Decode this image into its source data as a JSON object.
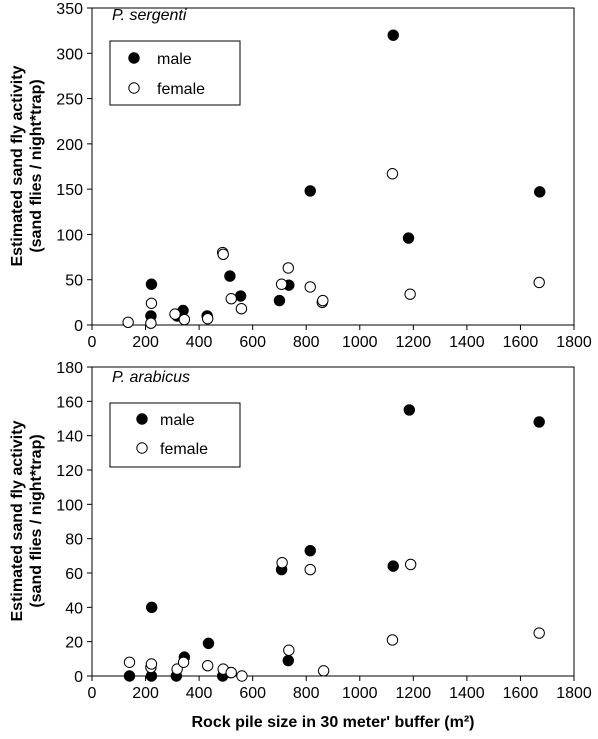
{
  "chart_data": [
    {
      "type": "scatter",
      "panel_label": "P. sergenti",
      "ylabel_line1": "Estimated sand fly activity",
      "ylabel_line2": "(sand flies / night*trap)",
      "xlim": [
        0,
        1800
      ],
      "ylim": [
        0,
        350
      ],
      "xticks": [
        "0",
        "200",
        "400",
        "600",
        "800",
        "1000",
        "1200",
        "1400",
        "1600",
        "1800"
      ],
      "yticks": [
        "0",
        "50",
        "100",
        "150",
        "200",
        "250",
        "300",
        "350"
      ],
      "legend_position": "top-left",
      "series": [
        {
          "name": "male",
          "marker": "filled-circle",
          "color": "#000000",
          "points": [
            [
              220,
              10
            ],
            [
              222,
              45
            ],
            [
              318,
              10
            ],
            [
              340,
              16
            ],
            [
              430,
              10
            ],
            [
              515,
              54
            ],
            [
              555,
              32
            ],
            [
              700,
              27
            ],
            [
              735,
              44
            ],
            [
              815,
              148
            ],
            [
              1125,
              320
            ],
            [
              1182,
              96
            ],
            [
              1672,
              147
            ]
          ]
        },
        {
          "name": "female",
          "marker": "open-circle",
          "color": "#000000",
          "points": [
            [
              135,
              3
            ],
            [
              220,
              2
            ],
            [
              222,
              24
            ],
            [
              310,
              12
            ],
            [
              345,
              6
            ],
            [
              432,
              7
            ],
            [
              488,
              80
            ],
            [
              490,
              78
            ],
            [
              520,
              29
            ],
            [
              558,
              18
            ],
            [
              708,
              45
            ],
            [
              733,
              63
            ],
            [
              815,
              42
            ],
            [
              860,
              25
            ],
            [
              862,
              27
            ],
            [
              1122,
              167
            ],
            [
              1188,
              34
            ],
            [
              1670,
              47
            ]
          ]
        }
      ]
    },
    {
      "type": "scatter",
      "panel_label": "P. arabicus",
      "ylabel_line1": "Estimated sand fly activity",
      "ylabel_line2": "(sand flies / night*trap)",
      "xlabel": "Rock pile size in 30 meter' buffer (m²)",
      "xlim": [
        0,
        1800
      ],
      "ylim": [
        0,
        180
      ],
      "xticks": [
        "0",
        "200",
        "400",
        "600",
        "800",
        "1000",
        "1200",
        "1400",
        "1600",
        "1800"
      ],
      "yticks": [
        "0",
        "20",
        "40",
        "60",
        "80",
        "100",
        "120",
        "140",
        "160",
        "180"
      ],
      "legend_position": "top-left",
      "series": [
        {
          "name": "male",
          "marker": "filled-circle",
          "color": "#000000",
          "points": [
            [
              140,
              0
            ],
            [
              222,
              0
            ],
            [
              223,
              40
            ],
            [
              315,
              0
            ],
            [
              345,
              11
            ],
            [
              435,
              19
            ],
            [
              488,
              0
            ],
            [
              518,
              2
            ],
            [
              708,
              62
            ],
            [
              733,
              9
            ],
            [
              815,
              73
            ],
            [
              1125,
              64
            ],
            [
              1185,
              155
            ],
            [
              1670,
              148
            ]
          ]
        },
        {
          "name": "female",
          "marker": "open-circle",
          "color": "#000000",
          "points": [
            [
              140,
              8
            ],
            [
              220,
              5
            ],
            [
              222,
              7
            ],
            [
              318,
              4
            ],
            [
              342,
              8
            ],
            [
              432,
              6
            ],
            [
              490,
              4
            ],
            [
              520,
              2
            ],
            [
              560,
              0
            ],
            [
              710,
              66
            ],
            [
              735,
              15
            ],
            [
              815,
              62
            ],
            [
              865,
              3
            ],
            [
              1122,
              21
            ],
            [
              1190,
              65
            ],
            [
              1670,
              25
            ]
          ]
        }
      ]
    }
  ]
}
